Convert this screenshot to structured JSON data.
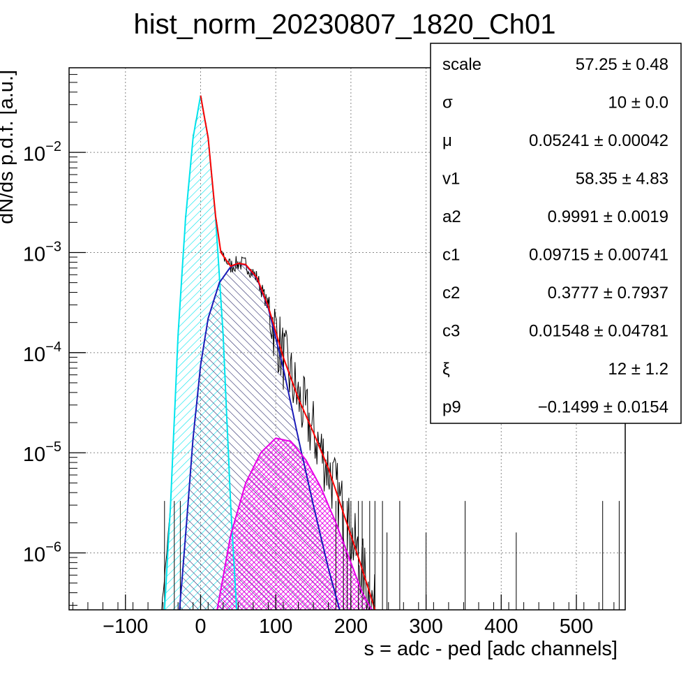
{
  "chart_data": {
    "type": "line",
    "title": "hist_norm_20230807_1820_Ch01",
    "xlabel": "s = adc - ped [adc channels]",
    "ylabel": "dN/ds p.d.f. [a.u.]",
    "xlim": [
      -175,
      565
    ],
    "ylim": [
      2.7e-07,
      0.07
    ],
    "yscale": "log",
    "grid": true,
    "x_ticks": [
      {
        "value": -100,
        "label": "−100"
      },
      {
        "value": 0,
        "label": "0"
      },
      {
        "value": 100,
        "label": "100"
      },
      {
        "value": 200,
        "label": "200"
      },
      {
        "value": 300,
        "label": "300"
      },
      {
        "value": 400,
        "label": "400"
      },
      {
        "value": 500,
        "label": "500"
      }
    ],
    "y_ticks": [
      {
        "value": 0.01,
        "base": "10",
        "exp": "−2"
      },
      {
        "value": 0.001,
        "base": "10",
        "exp": "−3"
      },
      {
        "value": 0.0001,
        "base": "10",
        "exp": "−4"
      },
      {
        "value": 1e-05,
        "base": "10",
        "exp": "−5"
      },
      {
        "value": 1e-06,
        "base": "10",
        "exp": "−6"
      }
    ],
    "series": [
      {
        "color": "#00e5ee",
        "hatch": "diag-right",
        "points": [
          [
            -48,
            2.7e-07
          ],
          [
            -40,
            3e-06
          ],
          [
            -30,
            0.00015
          ],
          [
            -20,
            0.0022
          ],
          [
            -10,
            0.014
          ],
          [
            0,
            0.037
          ],
          [
            10,
            0.014
          ],
          [
            20,
            0.0022
          ],
          [
            30,
            0.00015
          ],
          [
            40,
            3e-06
          ],
          [
            48,
            2.7e-07
          ]
        ]
      },
      {
        "color": "#1a1ab8",
        "hatch": "diag-left",
        "points": [
          [
            -28,
            2.7e-07
          ],
          [
            -20,
            1.5e-06
          ],
          [
            -10,
            1.4e-05
          ],
          [
            0,
            7.5e-05
          ],
          [
            10,
            0.00022
          ],
          [
            25,
            0.0005
          ],
          [
            40,
            0.00072
          ],
          [
            50,
            0.00078
          ],
          [
            60,
            0.00075
          ],
          [
            75,
            0.00055
          ],
          [
            90,
            0.00028
          ],
          [
            110,
            7e-05
          ],
          [
            130,
            1.4e-05
          ],
          [
            150,
            3e-06
          ],
          [
            170,
            7e-07
          ],
          [
            185,
            2.7e-07
          ]
        ]
      },
      {
        "color": "#e600e6",
        "hatch": "cross",
        "points": [
          [
            22,
            2.7e-07
          ],
          [
            40,
            1.5e-06
          ],
          [
            60,
            5e-06
          ],
          [
            80,
            1e-05
          ],
          [
            100,
            1.4e-05
          ],
          [
            120,
            1.3e-05
          ],
          [
            140,
            8.5e-06
          ],
          [
            160,
            4.5e-06
          ],
          [
            180,
            2e-06
          ],
          [
            200,
            8e-07
          ],
          [
            215,
            4e-07
          ],
          [
            228,
            2.7e-07
          ]
        ]
      },
      {
        "color": "#ff0000",
        "hatch": "none",
        "points": [
          [
            0,
            0.037
          ],
          [
            10,
            0.014
          ],
          [
            20,
            0.0023
          ],
          [
            27,
            0.001
          ],
          [
            40,
            0.00073
          ],
          [
            50,
            0.00078
          ],
          [
            60,
            0.00076
          ],
          [
            75,
            0.00056
          ],
          [
            90,
            0.00029
          ],
          [
            110,
            9e-05
          ],
          [
            130,
            3.5e-05
          ],
          [
            150,
            1.6e-05
          ],
          [
            170,
            7e-06
          ],
          [
            190,
            2.5e-06
          ],
          [
            210,
            9e-07
          ],
          [
            225,
            4e-07
          ],
          [
            232,
            2.7e-07
          ]
        ]
      }
    ],
    "histogram": {
      "color": "#000000",
      "points": [
        [
          -52,
          2.7e-07
        ],
        [
          -45,
          1e-06
        ],
        [
          -40,
          3e-06
        ],
        [
          -30,
          0.00015
        ],
        [
          -20,
          0.0022
        ],
        [
          -10,
          0.014
        ],
        [
          0,
          0.037
        ],
        [
          10,
          0.014
        ],
        [
          20,
          0.0023
        ],
        [
          27,
          0.001
        ],
        [
          40,
          0.00073
        ],
        [
          50,
          0.00078
        ],
        [
          60,
          0.00076
        ],
        [
          75,
          0.00056
        ],
        [
          90,
          0.00029
        ],
        [
          110,
          9e-05
        ],
        [
          130,
          3.5e-05
        ],
        [
          150,
          1.6e-05
        ],
        [
          170,
          7e-06
        ],
        [
          190,
          2.5e-06
        ],
        [
          210,
          9e-07
        ],
        [
          232,
          2.7e-07
        ]
      ],
      "spikes": [
        [
          -48,
          3.3e-06
        ],
        [
          -35,
          3.3e-06
        ],
        [
          -27,
          3.3e-06
        ],
        [
          180,
          3.3e-06
        ],
        [
          190,
          3.3e-06
        ],
        [
          195,
          3.3e-06
        ],
        [
          200,
          3.3e-06
        ],
        [
          210,
          3.3e-06
        ],
        [
          215,
          3.3e-06
        ],
        [
          225,
          3.3e-06
        ],
        [
          232,
          3.3e-06
        ],
        [
          242,
          3.3e-06
        ],
        [
          248,
          1.6e-06
        ],
        [
          265,
          3.3e-06
        ],
        [
          300,
          1.6e-06
        ],
        [
          352,
          3.3e-06
        ],
        [
          420,
          1.6e-06
        ],
        [
          535,
          3.3e-06
        ],
        [
          557,
          3.3e-06
        ]
      ]
    }
  },
  "stats_box": {
    "rows": [
      {
        "name": "scale",
        "value": "57.25 ± 0.48"
      },
      {
        "name": "σ",
        "value": "10 ± 0.0"
      },
      {
        "name": "μ",
        "value": "0.05241 ± 0.00042"
      },
      {
        "name": "v1",
        "value": "58.35 ± 4.83"
      },
      {
        "name": "a2",
        "value": "0.9991 ± 0.0019"
      },
      {
        "name": "c1",
        "value": "0.09715 ± 0.00741"
      },
      {
        "name": "c2",
        "value": "0.3777 ± 0.7937"
      },
      {
        "name": "c3",
        "value": "0.01548 ± 0.04781"
      },
      {
        "name": "ξ",
        "value": "12 ± 1.2"
      },
      {
        "name": "p9",
        "value": "−0.1499 ± 0.0154"
      }
    ]
  }
}
